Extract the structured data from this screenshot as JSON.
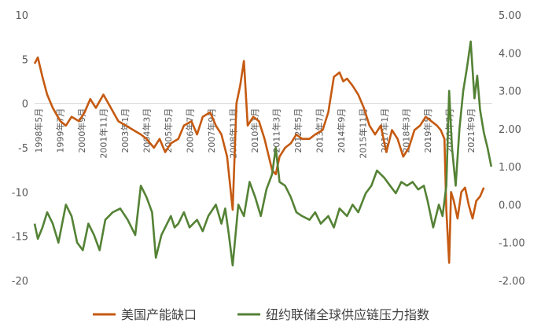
{
  "chart_data": {
    "type": "line",
    "title": "",
    "x_tick_labels": [
      "1998年5月",
      "1999年7月",
      "2000年9月",
      "2001年11月",
      "2003年1月",
      "2004年3月",
      "2005年5月",
      "2006年7月",
      "2007年9月",
      "2008年11月",
      "2010年1月",
      "2011年3月",
      "2012年5月",
      "2013年7月",
      "2014年9月",
      "2015年11月",
      "2017年1月",
      "2018年3月",
      "2019年5月",
      "2020年7月",
      "2021年9月"
    ],
    "y_left": {
      "ticks": [
        "10",
        "5",
        "0",
        "-5",
        "-10",
        "-15",
        "-20"
      ],
      "lim": [
        -20,
        10
      ]
    },
    "y_right": {
      "ticks": [
        "5.00",
        "4.00",
        "3.00",
        "2.00",
        "1.00",
        "0.00",
        "-1.00",
        "-2.00"
      ],
      "lim": [
        -2,
        5
      ]
    },
    "grid": false,
    "legend_position": "bottom",
    "series": [
      {
        "name": "美国产能缺口",
        "color": "#C55A11",
        "axis": "left",
        "x": [
          1998.33,
          1998.5,
          1998.75,
          1999.0,
          1999.3,
          1999.7,
          2000.0,
          2000.3,
          2000.7,
          2001.0,
          2001.3,
          2001.6,
          2002.0,
          2002.4,
          2002.8,
          2003.2,
          2003.6,
          2004.0,
          2004.3,
          2004.7,
          2005.0,
          2005.3,
          2005.6,
          2006.0,
          2006.3,
          2006.7,
          2007.0,
          2007.3,
          2007.7,
          2008.0,
          2008.3,
          2008.6,
          2008.9,
          2009.1,
          2009.3,
          2009.5,
          2009.7,
          2010.0,
          2010.3,
          2010.6,
          2011.0,
          2011.2,
          2011.4,
          2011.7,
          2012.0,
          2012.3,
          2012.6,
          2013.0,
          2013.3,
          2013.7,
          2014.0,
          2014.3,
          2014.6,
          2014.8,
          2015.0,
          2015.3,
          2015.6,
          2015.9,
          2016.2,
          2016.5,
          2016.8,
          2017.1,
          2017.4,
          2017.7,
          2018.0,
          2018.3,
          2018.6,
          2018.9,
          2019.2,
          2019.5,
          2019.8,
          2020.0,
          2020.2,
          2020.3,
          2020.45,
          2020.55,
          2020.7,
          2020.9,
          2021.1,
          2021.3,
          2021.5,
          2021.7,
          2021.9,
          2022.1,
          2022.3
        ],
        "y": [
          4.5,
          5.2,
          3.0,
          1.0,
          -0.5,
          -2.0,
          -2.5,
          -1.5,
          -2.0,
          -1.0,
          0.5,
          -0.5,
          1.0,
          -0.5,
          -2.0,
          -2.5,
          -3.0,
          -3.5,
          -4.0,
          -5.0,
          -4.0,
          -5.5,
          -4.5,
          -4.0,
          -2.5,
          -2.0,
          -3.5,
          -1.5,
          -1.0,
          -2.5,
          -3.5,
          -6.0,
          -12.0,
          0.0,
          2.0,
          4.8,
          -2.5,
          -1.5,
          -2.0,
          -4.0,
          -7.5,
          -8.0,
          -6.0,
          -5.0,
          -4.5,
          -3.5,
          -4.0,
          -4.0,
          -3.5,
          -3.0,
          -1.0,
          3.0,
          3.5,
          2.5,
          2.8,
          2.0,
          1.0,
          -0.5,
          -2.5,
          -3.5,
          -2.5,
          -5.5,
          -3.0,
          -4.0,
          -6.0,
          -5.0,
          -3.0,
          -2.5,
          -1.5,
          -2.0,
          -2.5,
          -3.0,
          -4.0,
          -12.0,
          -18.0,
          -10.0,
          -11.0,
          -13.0,
          -10.0,
          -9.5,
          -11.5,
          -13.0,
          -11.0,
          -10.5,
          -9.5
        ]
      },
      {
        "name": "纽约联储全球供应链压力指数",
        "color": "#548235",
        "axis": "right",
        "x": [
          1998.33,
          1998.5,
          1998.75,
          1999.0,
          1999.3,
          1999.6,
          2000.0,
          2000.3,
          2000.6,
          2000.9,
          2001.2,
          2001.5,
          2001.8,
          2002.1,
          2002.5,
          2002.9,
          2003.3,
          2003.7,
          2004.0,
          2004.3,
          2004.6,
          2004.8,
          2005.1,
          2005.4,
          2005.6,
          2005.8,
          2006.0,
          2006.3,
          2006.6,
          2007.0,
          2007.3,
          2007.6,
          2008.0,
          2008.3,
          2008.5,
          2008.7,
          2008.9,
          2009.2,
          2009.5,
          2009.8,
          2010.1,
          2010.4,
          2010.7,
          2011.0,
          2011.2,
          2011.4,
          2011.7,
          2012.0,
          2012.3,
          2012.6,
          2013.0,
          2013.3,
          2013.6,
          2014.0,
          2014.3,
          2014.6,
          2015.0,
          2015.3,
          2015.6,
          2016.0,
          2016.3,
          2016.6,
          2017.0,
          2017.3,
          2017.6,
          2017.9,
          2018.2,
          2018.5,
          2018.8,
          2019.1,
          2019.3,
          2019.6,
          2019.9,
          2020.1,
          2020.3,
          2020.45,
          2020.6,
          2020.8,
          2021.0,
          2021.2,
          2021.4,
          2021.6,
          2021.8,
          2021.95,
          2022.1,
          2022.3,
          2022.5,
          2022.7
        ],
        "y": [
          -0.5,
          -0.9,
          -0.6,
          -0.2,
          -0.5,
          -1.0,
          0.0,
          -0.3,
          -1.0,
          -1.2,
          -0.5,
          -0.8,
          -1.2,
          -0.4,
          -0.2,
          -0.1,
          -0.4,
          -0.8,
          0.5,
          0.2,
          -0.2,
          -1.4,
          -0.8,
          -0.5,
          -0.3,
          -0.6,
          -0.5,
          -0.2,
          -0.6,
          -0.4,
          -0.7,
          -0.3,
          0.0,
          -0.5,
          -0.1,
          -0.8,
          -1.6,
          0.0,
          -0.3,
          0.6,
          0.2,
          -0.3,
          0.4,
          0.8,
          1.5,
          0.6,
          0.5,
          0.2,
          -0.2,
          -0.3,
          -0.4,
          -0.2,
          -0.5,
          -0.3,
          -0.6,
          -0.1,
          -0.3,
          0.0,
          -0.2,
          0.3,
          0.5,
          0.9,
          0.7,
          0.5,
          0.3,
          0.6,
          0.5,
          0.6,
          0.4,
          0.5,
          0.1,
          -0.6,
          0.0,
          -0.3,
          0.5,
          3.0,
          1.5,
          0.5,
          2.0,
          3.0,
          3.6,
          4.3,
          2.8,
          3.4,
          2.5,
          1.9,
          1.5,
          1.0
        ]
      }
    ]
  }
}
